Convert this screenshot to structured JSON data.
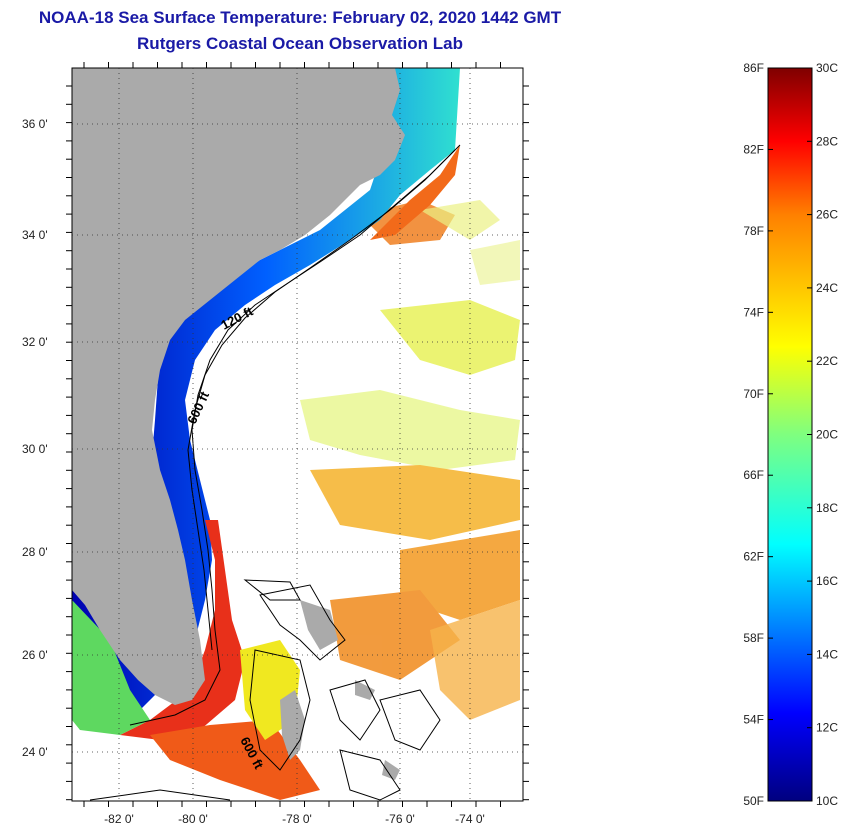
{
  "header": {
    "title": "NOAA-18 Sea Surface Temperature:  February 02, 2020 1442 GMT",
    "subtitle": "Rutgers Coastal Ocean Observation Lab"
  },
  "map": {
    "lat_ticks": [
      "36 0'",
      "34 0'",
      "32 0'",
      "30 0'",
      "28 0'",
      "26 0'",
      "24 0'"
    ],
    "lon_ticks": [
      "-82 0'",
      "-80 0'",
      "-78 0'",
      "-76 0'",
      "-74 0'"
    ],
    "contour_labels": [
      "120 ft",
      "600 ft",
      "600 ft"
    ],
    "colors": {
      "land": "#aaaaaa",
      "no_data": "#ffffff",
      "contour": "#000000"
    }
  },
  "colorbar": {
    "fahrenheit_labels": [
      "86F",
      "82F",
      "78F",
      "74F",
      "70F",
      "66F",
      "62F",
      "58F",
      "54F",
      "50F"
    ],
    "celsius_labels": [
      "30C",
      "28C",
      "26C",
      "24C",
      "22C",
      "20C",
      "18C",
      "16C",
      "14C",
      "12C",
      "10C"
    ],
    "range_c": [
      10,
      30
    ]
  }
}
